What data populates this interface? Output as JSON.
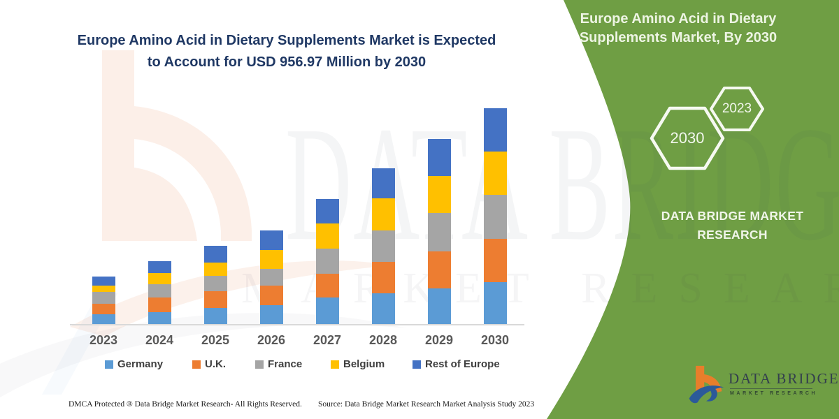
{
  "chart": {
    "title_line1": "Europe Amino Acid in Dietary Supplements Market is Expected",
    "title_line2": "to Account for USD 956.97 Million by 2030"
  },
  "chart_data": {
    "type": "bar",
    "stacked": true,
    "title": "Europe Amino Acid in Dietary Supplements Market is Expected to Account for USD 956.97 Million by 2030",
    "unit": "USD Million",
    "total_2030": 956.97,
    "grid": false,
    "legend_position": "bottom",
    "categories": [
      "2023",
      "2024",
      "2025",
      "2026",
      "2027",
      "2028",
      "2029",
      "2030"
    ],
    "series": [
      {
        "name": "Germany",
        "color": "#5B9BD5",
        "values": [
          44.2,
          52.6,
          70.2,
          82.6,
          118.5,
          137.1,
          156.6,
          185.6
        ]
      },
      {
        "name": "U.K.",
        "color": "#ED7D31",
        "values": [
          46.4,
          64.0,
          75.2,
          87.6,
          103.3,
          139.2,
          166.1,
          190.9
        ]
      },
      {
        "name": "France",
        "color": "#A5A5A5",
        "values": [
          51.7,
          58.8,
          67.1,
          75.2,
          111.4,
          139.2,
          170.2,
          195.8
        ]
      },
      {
        "name": "Belgium",
        "color": "#FFC000",
        "values": [
          28.8,
          49.5,
          58.8,
          82.6,
          113.2,
          141.4,
          161.8,
          190.9
        ]
      },
      {
        "name": "Rest of Europe",
        "color": "#4472C4",
        "values": [
          38.4,
          53.5,
          74.3,
          87.6,
          106.4,
          132.1,
          165.2,
          194.0
        ]
      }
    ],
    "estimated_totals": [
      209.5,
      278.4,
      345.6,
      415.6,
      552.8,
      689.0,
      819.9,
      957.2
    ]
  },
  "side_panel": {
    "accent_green": "#6F9E44",
    "title_line1": "Europe Amino Acid in Dietary",
    "title_line2": "Supplements Market, By 2030",
    "hexagons": [
      "2030",
      "2023"
    ],
    "brand_line1": "DATA BRIDGE MARKET",
    "brand_line2": "RESEARCH"
  },
  "logo": {
    "name": "DATA BRIDGE",
    "subtitle": "MARKET RESEARCH",
    "orange": "#E87E2B",
    "blue": "#2C5A9A"
  },
  "watermark": {
    "line1": "DATA BRIDGE",
    "line2": "MARKET RESEARCH"
  },
  "footer": {
    "left": "DMCA Protected ® Data Bridge Market Research-  All Rights Reserved.",
    "source": "Source: Data Bridge Market Research  Market Analysis Study 2023"
  }
}
